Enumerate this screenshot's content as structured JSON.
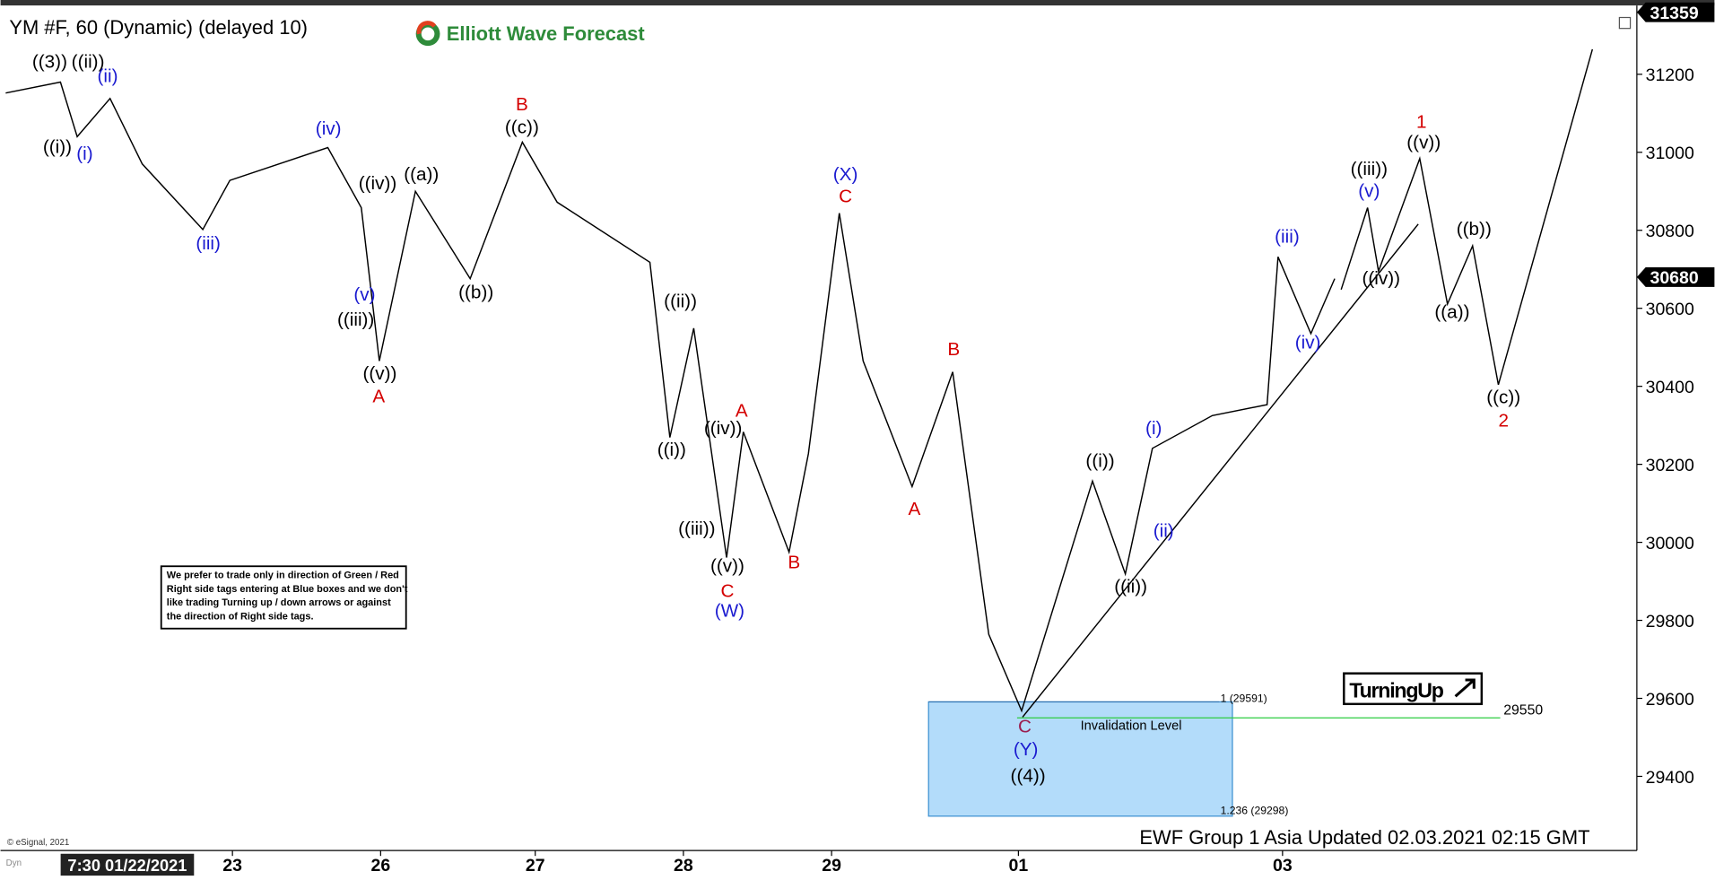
{
  "chart_data": {
    "type": "line",
    "title": "YM #F, 60 (Dynamic) (delayed 10)",
    "brand": "Elliott Wave Forecast",
    "x": [
      0.8,
      9.3,
      11.9,
      17,
      22,
      31.4,
      35.6,
      50.8,
      56,
      58.8,
      64.4,
      72.9,
      81,
      86.4,
      100.8,
      103.9,
      107.6,
      112.7,
      115.3,
      122.4,
      125.4,
      130.2,
      133.9,
      141.5,
      147.8,
      153.4,
      158.5,
      169.5,
      174.6,
      178.8,
      188.1,
      196.6,
      198.3,
      203.4,
      207.1
    ],
    "values": [
      31152,
      31180,
      31040,
      31138,
      30970,
      30802,
      30928,
      31012,
      30858,
      30465,
      30900,
      30676,
      31026,
      30872,
      30718,
      30269,
      30549,
      29961,
      30283,
      29975,
      30227,
      30844,
      30465,
      30143,
      30437,
      29764,
      29568,
      30157,
      29919,
      30241,
      30325,
      30353,
      30732,
      30535,
      30676
    ],
    "projection": {
      "x": [
        208.1,
        212.2,
        213.9,
        220.3,
        224.6,
        228.5,
        232.5,
        247.1
      ],
      "values": [
        30648,
        30858,
        30695,
        30984,
        30611,
        30760,
        30404,
        31264
      ]
    },
    "xlim": [
      0,
      254
    ],
    "xticks": [
      {
        "value": 36,
        "label": "23"
      },
      {
        "value": 59,
        "label": "26"
      },
      {
        "value": 83,
        "label": "27"
      },
      {
        "value": 106,
        "label": "28"
      },
      {
        "value": 129,
        "label": "29"
      },
      {
        "value": 158,
        "label": "01"
      },
      {
        "value": 199,
        "label": "03"
      }
    ],
    "ylim": [
      29210,
      31368
    ],
    "yticks": [
      29400,
      29600,
      29800,
      30000,
      30200,
      30400,
      30600,
      30800,
      31000,
      31200
    ],
    "price_labels": [
      {
        "value": 31359,
        "color": "#000000"
      },
      {
        "value": 30680,
        "color": "#000000"
      }
    ],
    "cursor_time": "7:30 01/22/2021",
    "annotations": [
      {
        "text": "((3))",
        "color": "#000000"
      },
      {
        "text": "((ii))",
        "color": "#000000"
      },
      {
        "text": "(ii)",
        "color": "#1a1ad0"
      },
      {
        "text": "((i))",
        "color": "#000000"
      },
      {
        "text": "(i)",
        "color": "#1a1ad0"
      },
      {
        "text": "(iii)",
        "color": "#1a1ad0"
      },
      {
        "text": "(iv)",
        "color": "#1a1ad0"
      },
      {
        "text": "B",
        "color": "#d40000"
      },
      {
        "text": "((c))",
        "color": "#000000"
      },
      {
        "text": "((iv))",
        "color": "#000000"
      },
      {
        "text": "((a))",
        "color": "#000000"
      },
      {
        "text": "(v)",
        "color": "#1a1ad0"
      },
      {
        "text": "((iii))",
        "color": "#000000"
      },
      {
        "text": "((b))",
        "color": "#000000"
      },
      {
        "text": "((v))",
        "color": "#000000"
      },
      {
        "text": "A",
        "color": "#d40000"
      },
      {
        "text": "((ii))",
        "color": "#000000"
      },
      {
        "text": "((i))",
        "color": "#000000"
      },
      {
        "text": "((iv))",
        "color": "#000000"
      },
      {
        "text": "A",
        "color": "#d40000"
      },
      {
        "text": "((iii))",
        "color": "#000000"
      },
      {
        "text": "((v))",
        "color": "#000000"
      },
      {
        "text": "C",
        "color": "#d40000"
      },
      {
        "text": "(W)",
        "color": "#1a1ad0"
      },
      {
        "text": "B",
        "color": "#d40000"
      },
      {
        "text": "(X)",
        "color": "#1a1ad0"
      },
      {
        "text": "C",
        "color": "#d40000"
      },
      {
        "text": "B",
        "color": "#d40000"
      },
      {
        "text": "A",
        "color": "#d40000"
      },
      {
        "text": "((i))",
        "color": "#000000"
      },
      {
        "text": "(i)",
        "color": "#1a1ad0"
      },
      {
        "text": "(ii)",
        "color": "#1a1ad0"
      },
      {
        "text": "((ii))",
        "color": "#000000"
      },
      {
        "text": "C",
        "color": "#9b1d4f"
      },
      {
        "text": "(Y)",
        "color": "#1a1ad0"
      },
      {
        "text": "((4))",
        "color": "#000000"
      },
      {
        "text": "(iii)",
        "color": "#1a1ad0"
      },
      {
        "text": "(iv)",
        "color": "#1a1ad0"
      },
      {
        "text": "((iii))",
        "color": "#000000"
      },
      {
        "text": "(v)",
        "color": "#1a1ad0"
      },
      {
        "text": "((iv))",
        "color": "#000000"
      },
      {
        "text": "1",
        "color": "#d40000"
      },
      {
        "text": "((v))",
        "color": "#000000"
      },
      {
        "text": "((b))",
        "color": "#000000"
      },
      {
        "text": "((a))",
        "color": "#000000"
      },
      {
        "text": "((c))",
        "color": "#000000"
      },
      {
        "text": "2",
        "color": "#d40000"
      }
    ],
    "blue_box": {
      "top": {
        "value": 29591,
        "label": "1 (29591)"
      },
      "bottom": {
        "value": 29298,
        "label": "1.236 (29298)"
      },
      "color": "#b3dcfa"
    },
    "invalidation": {
      "value": 29550,
      "text": "Invalidation Level",
      "color": "#2ecc40"
    },
    "note": [
      "We prefer to trade only in direction of Green / Red",
      "Right side tags entering at Blue boxes and we don't",
      "like trading Turning up / down arrows or against",
      "the direction of Right side tags."
    ],
    "badge": "TurningUp",
    "footer": "EWF Group 1 Asia Updated 02.03.2021 02:15 GMT",
    "copyright": "© eSignal, 2021",
    "corner": "Dyn"
  }
}
